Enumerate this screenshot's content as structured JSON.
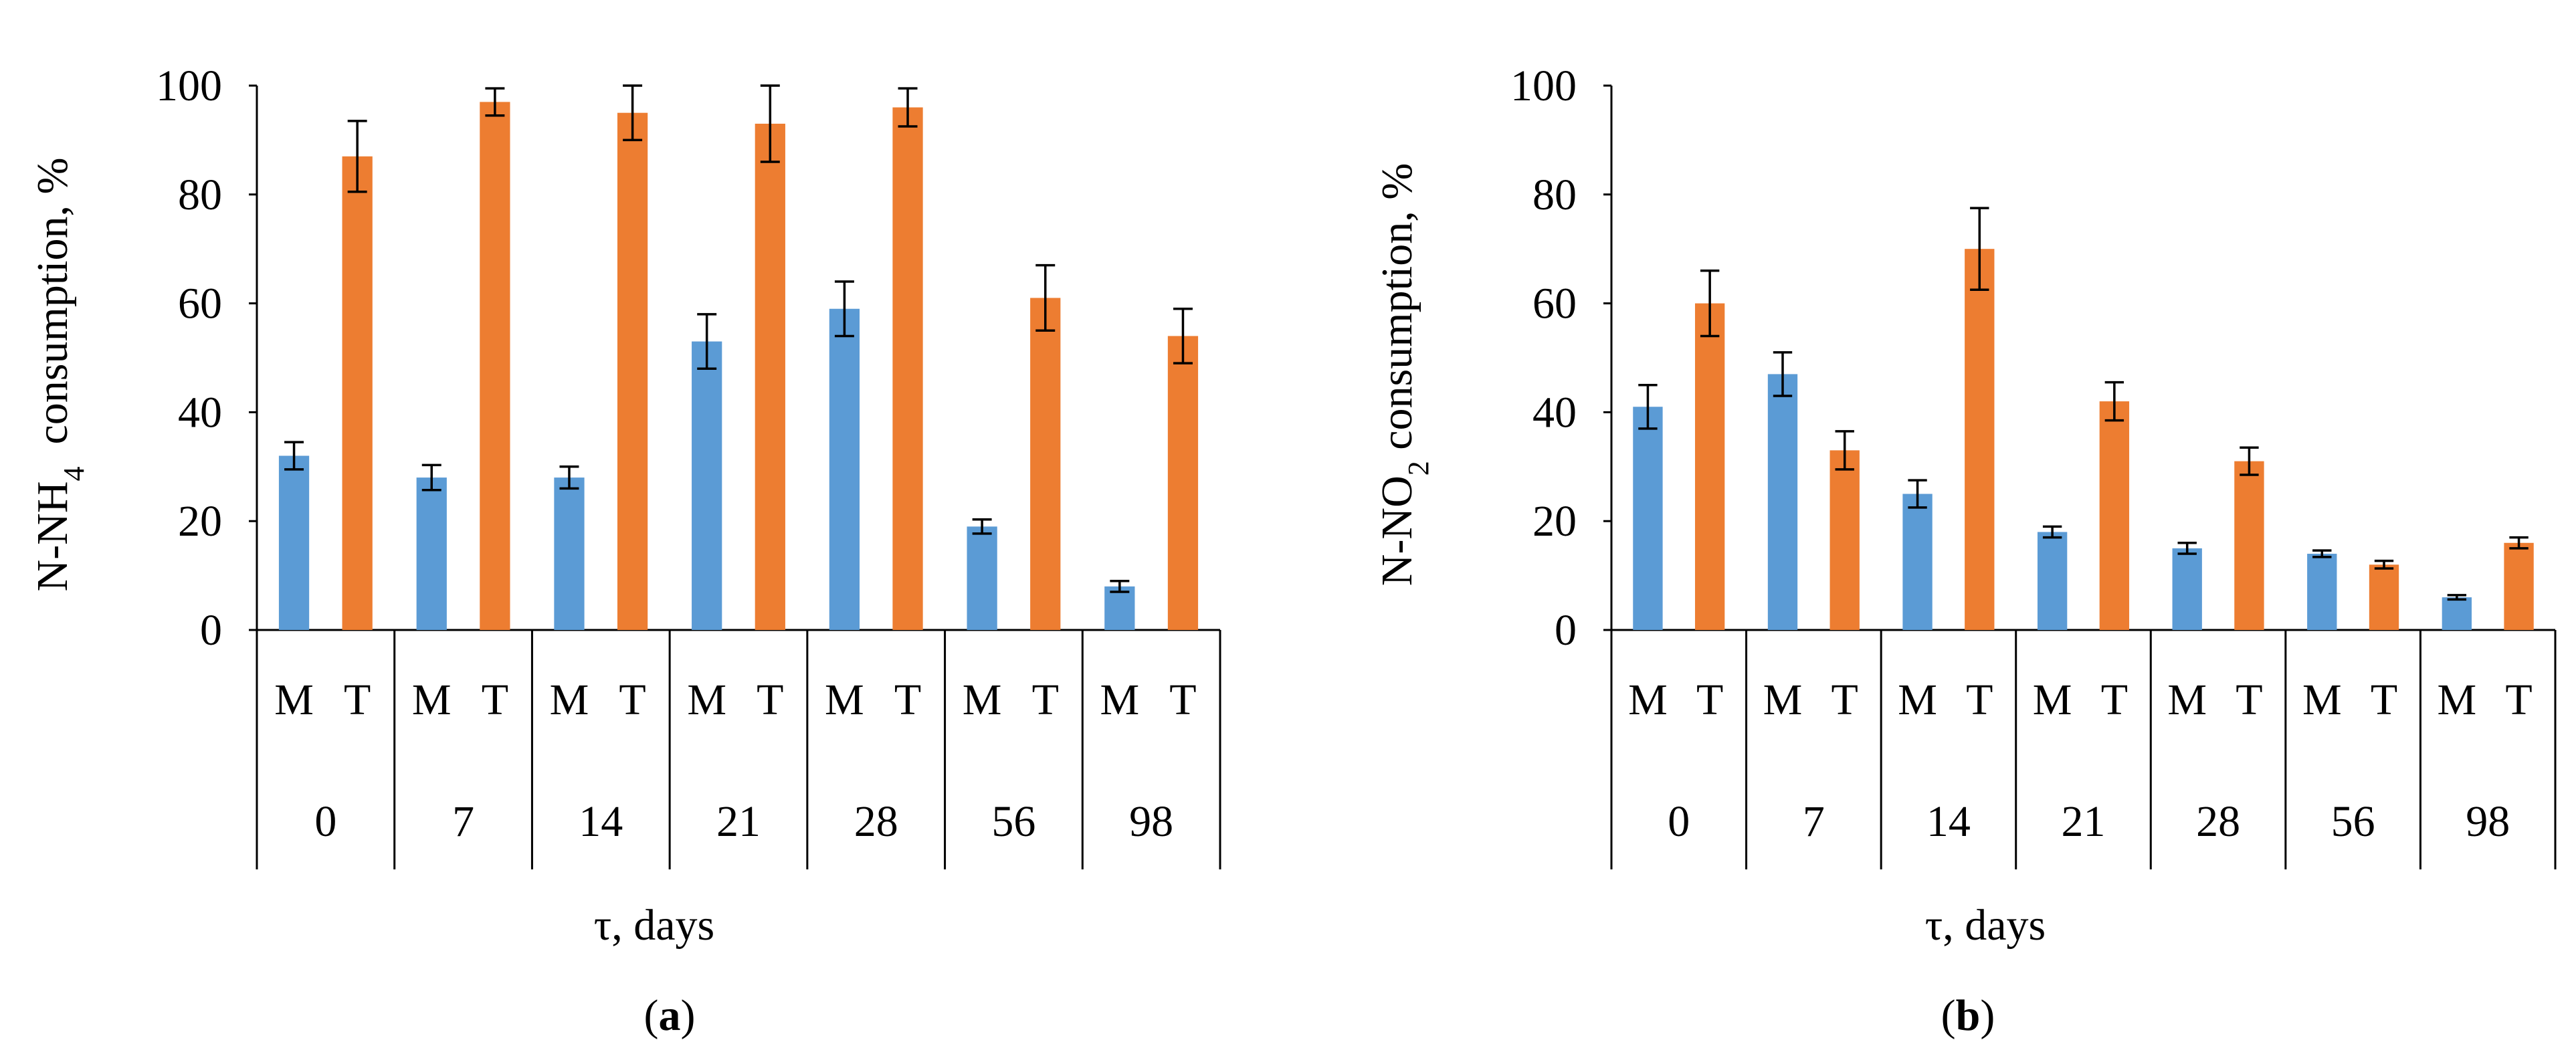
{
  "colors": {
    "M": "#5b9bd5",
    "T": "#ed7d31",
    "axis": "#000000"
  },
  "chart_data": [
    {
      "type": "bar",
      "panel_label": "a",
      "ylabel_main": "N-NH",
      "ylabel_sub": "4",
      "ylabel_suffix": "  consumption, %",
      "xlabel": "τ, days",
      "ylim": [
        0,
        100
      ],
      "yticks": [
        "0",
        "20",
        "40",
        "60",
        "80",
        "100"
      ],
      "groups": [
        "0",
        "7",
        "14",
        "21",
        "28",
        "56",
        "98"
      ],
      "subcategories": [
        "M",
        "T"
      ],
      "series": [
        {
          "name": "M",
          "values": [
            32,
            28,
            28,
            53,
            59,
            19,
            8
          ],
          "errors": [
            2.5,
            2.3,
            2,
            5,
            5,
            1.3,
            1
          ]
        },
        {
          "name": "T",
          "values": [
            87,
            97,
            95,
            93,
            96,
            61,
            54
          ],
          "errors": [
            6.5,
            2.5,
            5,
            7,
            3.5,
            6,
            5
          ]
        }
      ]
    },
    {
      "type": "bar",
      "panel_label": "b",
      "ylabel_main": "N-NO",
      "ylabel_sub": "2",
      "ylabel_suffix": " consumption, %",
      "xlabel": "τ, days",
      "ylim": [
        0,
        100
      ],
      "yticks": [
        "0",
        "20",
        "40",
        "60",
        "80",
        "100"
      ],
      "groups": [
        "0",
        "7",
        "14",
        "21",
        "28",
        "56",
        "98"
      ],
      "subcategories": [
        "M",
        "T"
      ],
      "series": [
        {
          "name": "M",
          "values": [
            41,
            47,
            25,
            18,
            15,
            14,
            6
          ],
          "errors": [
            4,
            4,
            2.5,
            1,
            1,
            0.6,
            0.4
          ]
        },
        {
          "name": "T",
          "values": [
            60,
            33,
            70,
            42,
            31,
            12,
            16
          ],
          "errors": [
            6,
            3.5,
            7.5,
            3.5,
            2.5,
            0.7,
            1
          ]
        }
      ]
    }
  ]
}
